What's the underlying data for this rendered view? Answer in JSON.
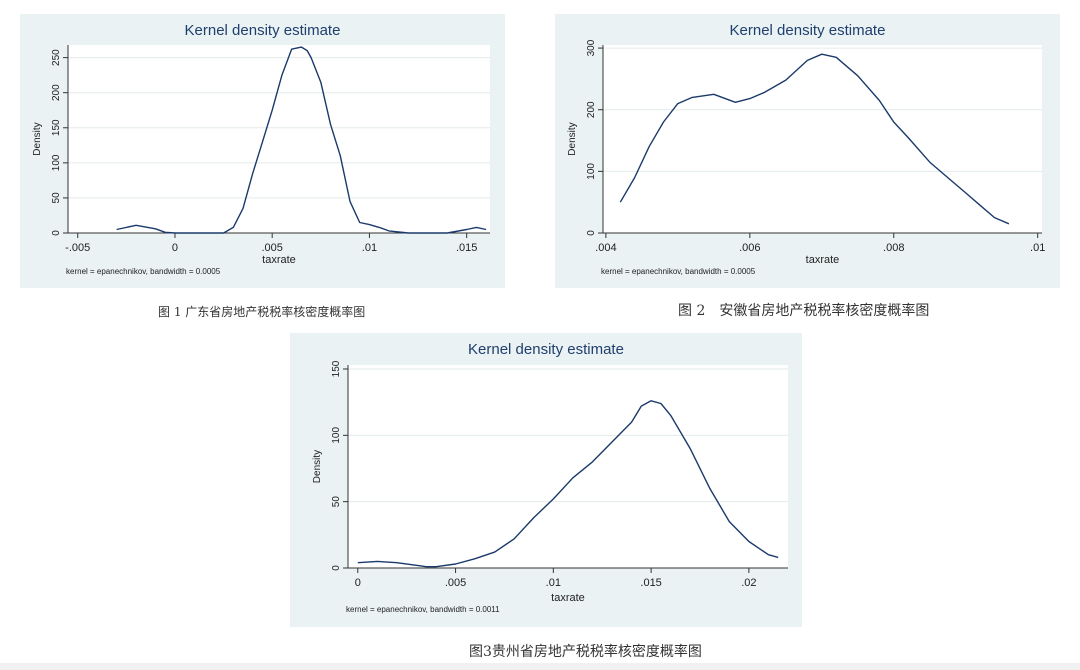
{
  "chart_data": [
    {
      "type": "line",
      "title": "Kernel density estimate",
      "xlabel": "taxrate",
      "ylabel": "Density",
      "note": "kernel = epanechnikov, bandwidth = 0.0005",
      "caption": "图 1 广东省房地产税税率核密度概率图",
      "xlim": [
        -0.0055,
        0.0162
      ],
      "ylim": [
        0,
        268
      ],
      "xticks": [
        -0.005,
        0,
        0.005,
        0.01,
        0.015
      ],
      "xtick_labels": [
        "-.005",
        "0",
        ".005",
        ".01",
        ".015"
      ],
      "yticks": [
        0,
        50,
        100,
        150,
        200,
        250
      ],
      "ytick_labels": [
        "0",
        "50",
        "100",
        "150",
        "200",
        "250"
      ],
      "grid": true,
      "x": [
        -0.003,
        -0.002,
        -0.001,
        -0.0005,
        0,
        0.001,
        0.002,
        0.0025,
        0.003,
        0.0035,
        0.004,
        0.0045,
        0.005,
        0.0055,
        0.006,
        0.0065,
        0.0068,
        0.007,
        0.0075,
        0.008,
        0.0085,
        0.009,
        0.0095,
        0.01,
        0.0105,
        0.011,
        0.012,
        0.013,
        0.014,
        0.015,
        0.0155,
        0.016
      ],
      "y": [
        5,
        11,
        6,
        1,
        0,
        0,
        0,
        0,
        8,
        35,
        85,
        130,
        175,
        225,
        262,
        265,
        260,
        250,
        215,
        155,
        110,
        45,
        15,
        12,
        8,
        3,
        0,
        0,
        0,
        5,
        8,
        5
      ]
    },
    {
      "type": "line",
      "title": "Kernel density estimate",
      "xlabel": "taxrate",
      "ylabel": "Density",
      "note": "kernel = epanechnikov, bandwidth = 0.0005",
      "caption": "图 2　安徽省房地产税税率核密度概率图",
      "xlim": [
        0.00396,
        0.01006
      ],
      "ylim": [
        0,
        305
      ],
      "xticks": [
        0.004,
        0.006,
        0.008,
        0.01
      ],
      "xtick_labels": [
        ".004",
        ".006",
        ".008",
        ".01"
      ],
      "yticks": [
        0,
        100,
        200,
        300
      ],
      "ytick_labels": [
        "0",
        "100",
        "200",
        "300"
      ],
      "grid": true,
      "x": [
        0.0042,
        0.0044,
        0.0046,
        0.0048,
        0.005,
        0.0052,
        0.0055,
        0.0058,
        0.006,
        0.0062,
        0.0065,
        0.0068,
        0.007,
        0.0072,
        0.0075,
        0.0078,
        0.008,
        0.0082,
        0.0085,
        0.0088,
        0.009,
        0.0092,
        0.0094,
        0.0096
      ],
      "y": [
        50,
        90,
        140,
        180,
        210,
        220,
        225,
        212,
        218,
        228,
        248,
        280,
        290,
        285,
        255,
        215,
        180,
        155,
        115,
        85,
        65,
        45,
        25,
        15
      ]
    },
    {
      "type": "line",
      "title": "Kernel density estimate",
      "xlabel": "taxrate",
      "ylabel": "Density",
      "note": "kernel = epanechnikov, bandwidth = 0.0011",
      "caption": "图3贵州省房地产税税率核密度概率图",
      "xlim": [
        -0.0005,
        0.022
      ],
      "ylim": [
        0,
        153
      ],
      "xticks": [
        0,
        0.005,
        0.01,
        0.015,
        0.02
      ],
      "xtick_labels": [
        "0",
        ".005",
        ".01",
        ".015",
        ".02"
      ],
      "yticks": [
        0,
        50,
        100,
        150
      ],
      "ytick_labels": [
        "0",
        "50",
        "100",
        "150"
      ],
      "grid": true,
      "x": [
        0,
        0.001,
        0.002,
        0.003,
        0.0035,
        0.004,
        0.005,
        0.006,
        0.007,
        0.008,
        0.009,
        0.01,
        0.011,
        0.012,
        0.013,
        0.014,
        0.0145,
        0.015,
        0.0155,
        0.016,
        0.017,
        0.018,
        0.019,
        0.02,
        0.021,
        0.0215
      ],
      "y": [
        4,
        5,
        4,
        2,
        1,
        1,
        3,
        7,
        12,
        22,
        38,
        52,
        68,
        80,
        95,
        110,
        122,
        126,
        124,
        115,
        90,
        60,
        35,
        20,
        10,
        8
      ]
    }
  ]
}
